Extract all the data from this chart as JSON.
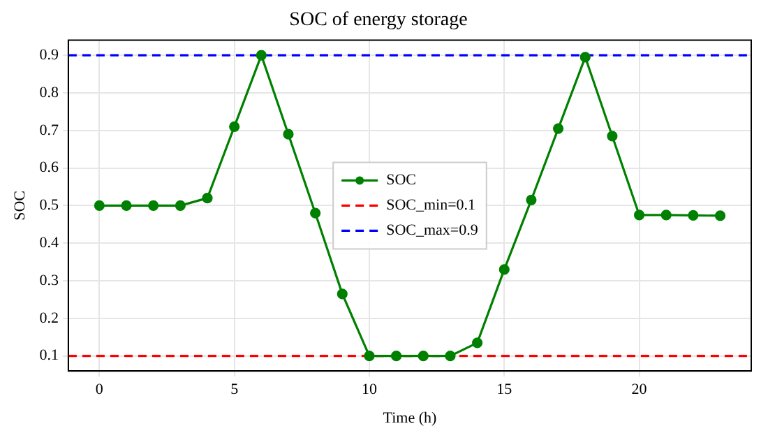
{
  "chart_data": {
    "type": "line",
    "title": "SOC of energy storage",
    "xlabel": "Time (h)",
    "ylabel": "SOC",
    "x": [
      0,
      1,
      2,
      3,
      4,
      5,
      6,
      7,
      8,
      9,
      10,
      11,
      12,
      13,
      14,
      15,
      16,
      17,
      18,
      19,
      20,
      21,
      22,
      23
    ],
    "series": [
      {
        "name": "SOC",
        "color": "#008000",
        "values": [
          0.5,
          0.5,
          0.5,
          0.5,
          0.52,
          0.71,
          0.9,
          0.69,
          0.48,
          0.265,
          0.1,
          0.1,
          0.1,
          0.1,
          0.135,
          0.33,
          0.515,
          0.705,
          0.895,
          0.685,
          0.475,
          0.475,
          0.474,
          0.473
        ]
      }
    ],
    "ref_lines": [
      {
        "axis": "y",
        "value": 0.1,
        "label": "SOC_min=0.1",
        "color": "#ff0000",
        "line_style": "dashed"
      },
      {
        "axis": "y",
        "value": 0.9,
        "label": "SOC_max=0.9",
        "color": "#0000ff",
        "line_style": "dashed"
      }
    ],
    "xlim": [
      -1.15,
      24.15
    ],
    "xticks": [
      0,
      5,
      10,
      15,
      20
    ],
    "ylim": [
      0.06,
      0.94
    ],
    "yticks": [
      0.1,
      0.2,
      0.3,
      0.4,
      0.5,
      0.6,
      0.7,
      0.8,
      0.9
    ],
    "grid": true,
    "legend": "center",
    "marker": "circle",
    "line_style": "solid"
  }
}
